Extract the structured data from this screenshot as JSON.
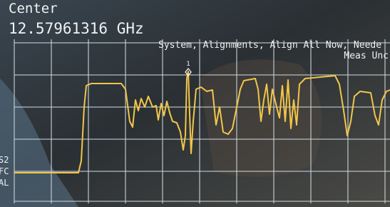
{
  "header": {
    "label": "Center",
    "frequency": "12.57961316 GHz"
  },
  "message": {
    "line1": "System, Alignments, Align All Now, Neede",
    "line2": "Meas Unc"
  },
  "marker": {
    "label": "1"
  },
  "side_labels": [
    "S2",
    "FC",
    "AL"
  ]
}
